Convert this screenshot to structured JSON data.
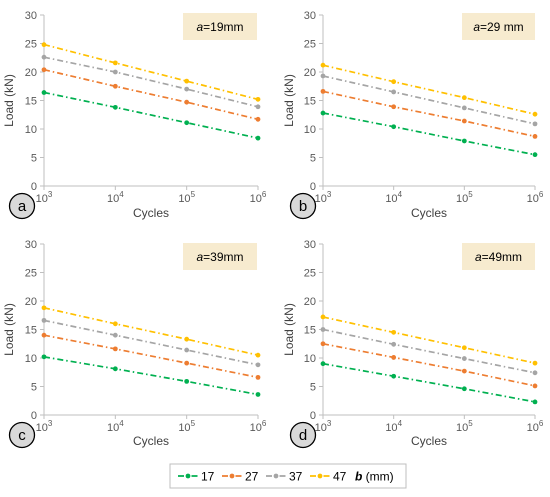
{
  "chart_data": [
    {
      "type": "line",
      "panel_label": "a",
      "annotation": {
        "var": "a",
        "rest": "=19mm"
      },
      "xlabel": "Cycles",
      "ylabel": "Load (kN)",
      "x": [
        1000,
        10000,
        100000,
        1000000
      ],
      "x_ticks": [
        {
          "base": "10",
          "exp": "3"
        },
        {
          "base": "10",
          "exp": "4"
        },
        {
          "base": "10",
          "exp": "5"
        },
        {
          "base": "10",
          "exp": "6"
        }
      ],
      "yticks": [
        "0",
        "5",
        "10",
        "15",
        "20",
        "25",
        "30"
      ],
      "xscale": "log",
      "ylim": [
        0,
        30
      ],
      "grid": false,
      "series": [
        {
          "name": "17",
          "color": "#00b050",
          "values": [
            16.4,
            13.8,
            11.1,
            8.4
          ]
        },
        {
          "name": "27",
          "color": "#ed7d31",
          "values": [
            20.4,
            17.5,
            14.7,
            11.7
          ]
        },
        {
          "name": "37",
          "color": "#a5a5a5",
          "values": [
            22.6,
            20.0,
            17.0,
            13.9
          ]
        },
        {
          "name": "47",
          "color": "#ffc000",
          "values": [
            24.8,
            21.6,
            18.4,
            15.2
          ]
        }
      ]
    },
    {
      "type": "line",
      "panel_label": "b",
      "annotation": {
        "var": "a",
        "rest": "=29 mm"
      },
      "xlabel": "Cycles",
      "ylabel": "Load (kN)",
      "x": [
        1000,
        10000,
        100000,
        1000000
      ],
      "x_ticks": [
        {
          "base": "10",
          "exp": "3"
        },
        {
          "base": "10",
          "exp": "4"
        },
        {
          "base": "10",
          "exp": "5"
        },
        {
          "base": "10",
          "exp": "6"
        }
      ],
      "yticks": [
        "0",
        "5",
        "10",
        "15",
        "20",
        "25",
        "30"
      ],
      "xscale": "log",
      "ylim": [
        0,
        30
      ],
      "grid": false,
      "series": [
        {
          "name": "17",
          "color": "#00b050",
          "values": [
            12.8,
            10.4,
            7.9,
            5.5
          ]
        },
        {
          "name": "27",
          "color": "#ed7d31",
          "values": [
            16.6,
            13.9,
            11.4,
            8.7
          ]
        },
        {
          "name": "37",
          "color": "#a5a5a5",
          "values": [
            19.3,
            16.5,
            13.7,
            10.9
          ]
        },
        {
          "name": "47",
          "color": "#ffc000",
          "values": [
            21.2,
            18.3,
            15.5,
            12.6
          ]
        }
      ]
    },
    {
      "type": "line",
      "panel_label": "c",
      "annotation": {
        "var": "a",
        "rest": "=39mm"
      },
      "xlabel": "Cycles",
      "ylabel": "Load (kN)",
      "x": [
        1000,
        10000,
        100000,
        1000000
      ],
      "x_ticks": [
        {
          "base": "10",
          "exp": "3"
        },
        {
          "base": "10",
          "exp": "4"
        },
        {
          "base": "10",
          "exp": "5"
        },
        {
          "base": "10",
          "exp": "6"
        }
      ],
      "yticks": [
        "0",
        "5",
        "10",
        "15",
        "20",
        "25",
        "30"
      ],
      "xscale": "log",
      "ylim": [
        0,
        30
      ],
      "grid": false,
      "series": [
        {
          "name": "17",
          "color": "#00b050",
          "values": [
            10.2,
            8.1,
            5.9,
            3.6
          ]
        },
        {
          "name": "27",
          "color": "#ed7d31",
          "values": [
            14.0,
            11.6,
            9.1,
            6.6
          ]
        },
        {
          "name": "37",
          "color": "#a5a5a5",
          "values": [
            16.6,
            14.0,
            11.4,
            8.8
          ]
        },
        {
          "name": "47",
          "color": "#ffc000",
          "values": [
            18.8,
            16.0,
            13.3,
            10.5
          ]
        }
      ]
    },
    {
      "type": "line",
      "panel_label": "d",
      "annotation": {
        "var": "a",
        "rest": "=49mm"
      },
      "xlabel": "Cycles",
      "ylabel": "Load (kN)",
      "x": [
        1000,
        10000,
        100000,
        1000000
      ],
      "x_ticks": [
        {
          "base": "10",
          "exp": "3"
        },
        {
          "base": "10",
          "exp": "4"
        },
        {
          "base": "10",
          "exp": "5"
        },
        {
          "base": "10",
          "exp": "6"
        }
      ],
      "yticks": [
        "0",
        "5",
        "10",
        "15",
        "20",
        "25",
        "30"
      ],
      "xscale": "log",
      "ylim": [
        0,
        30
      ],
      "grid": false,
      "series": [
        {
          "name": "17",
          "color": "#00b050",
          "values": [
            9.0,
            6.8,
            4.6,
            2.3
          ]
        },
        {
          "name": "27",
          "color": "#ed7d31",
          "values": [
            12.5,
            10.1,
            7.7,
            5.1
          ]
        },
        {
          "name": "37",
          "color": "#a5a5a5",
          "values": [
            15.0,
            12.4,
            9.9,
            7.4
          ]
        },
        {
          "name": "47",
          "color": "#ffc000",
          "values": [
            17.2,
            14.5,
            11.8,
            9.1
          ]
        }
      ]
    }
  ],
  "legend": {
    "position": "bottom-center",
    "items": [
      {
        "label": "17",
        "color": "#00b050"
      },
      {
        "label": "27",
        "color": "#ed7d31"
      },
      {
        "label": "37",
        "color": "#a5a5a5"
      },
      {
        "label": "47",
        "color": "#ffc000"
      }
    ],
    "unit_var": "b",
    "unit_rest": " (mm)"
  },
  "colors": {
    "annotation_fill": "#f7ebcf",
    "panel_label_fill": "#d9d9d9",
    "axis_color": "#bfbfbf"
  }
}
